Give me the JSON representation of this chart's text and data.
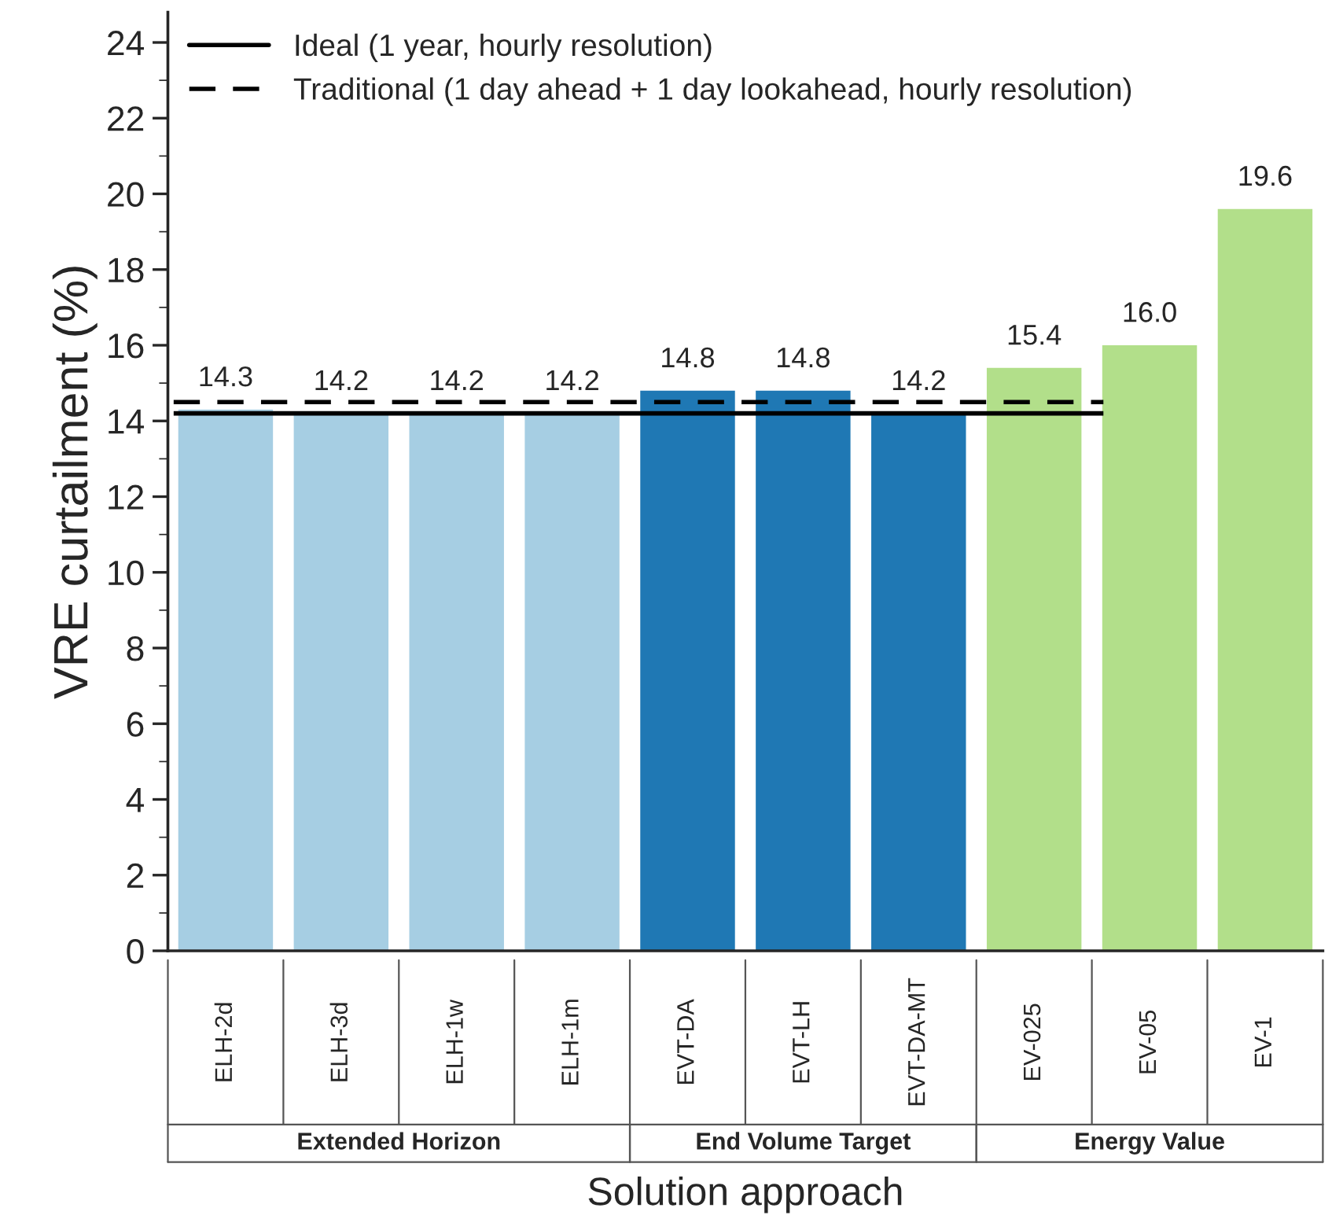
{
  "chart_data": {
    "type": "bar",
    "xlabel": "Solution approach",
    "ylabel": "VRE curtailment (%)",
    "categories": [
      "ELH-2d",
      "ELH-3d",
      "ELH-1w",
      "ELH-1m",
      "EVT-DA",
      "EVT-LH",
      "EVT-DA-MT",
      "EV-025",
      "EV-05",
      "EV-1"
    ],
    "values": [
      14.3,
      14.2,
      14.2,
      14.2,
      14.8,
      14.8,
      14.2,
      15.4,
      16.0,
      19.6
    ],
    "colors": [
      "#a6cee3",
      "#a6cee3",
      "#a6cee3",
      "#a6cee3",
      "#1f78b4",
      "#1f78b4",
      "#1f78b4",
      "#b2df8a",
      "#b2df8a",
      "#b2df8a"
    ],
    "value_labels": [
      "14.3",
      "14.2",
      "14.2",
      "14.2",
      "14.8",
      "14.8",
      "14.2",
      "15.4",
      "16.0",
      "19.6"
    ],
    "ylim": [
      0,
      24.8
    ],
    "yticks": [
      0,
      2,
      4,
      6,
      8,
      10,
      12,
      14,
      16,
      18,
      20,
      22,
      24
    ],
    "ref_lines": [
      {
        "axis": "y",
        "value": 14.2,
        "label": "Ideal (1 year, hourly resolution)",
        "color": "#000000",
        "line_style": "solid"
      },
      {
        "axis": "y",
        "value": 14.5,
        "label": "Traditional (1 day ahead + 1 day lookahead, hourly resolution)",
        "color": "#000000",
        "line_style": "dashed"
      }
    ],
    "annotations": [
      "Extended Horizon",
      "End Volume Target",
      "Energy Value"
    ],
    "legend": "top left",
    "grid": false
  }
}
